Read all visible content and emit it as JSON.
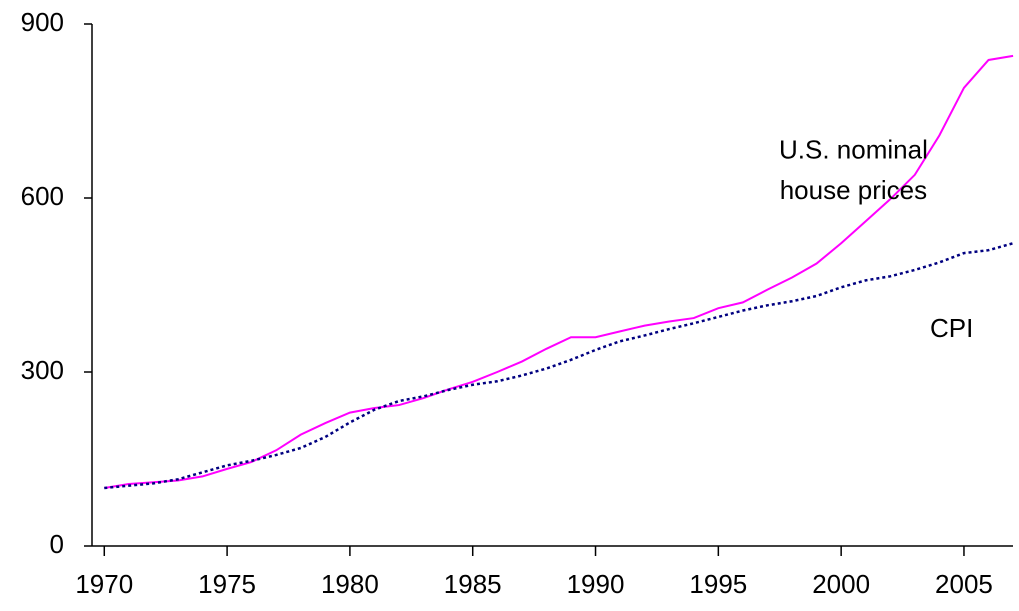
{
  "chart_data": {
    "type": "line",
    "x": [
      1970,
      1971,
      1972,
      1973,
      1974,
      1975,
      1976,
      1977,
      1978,
      1979,
      1980,
      1981,
      1982,
      1983,
      1984,
      1985,
      1986,
      1987,
      1988,
      1989,
      1990,
      1991,
      1992,
      1993,
      1994,
      1995,
      1996,
      1997,
      1998,
      1999,
      2000,
      2001,
      2002,
      2003,
      2004,
      2005,
      2006,
      2007
    ],
    "series": [
      {
        "color": "#ff00ff",
        "style": "solid",
        "values": [
          100,
          107,
          110,
          113,
          120,
          133,
          145,
          165,
          192,
          212,
          230,
          238,
          243,
          255,
          270,
          283,
          300,
          318,
          340,
          360,
          360,
          370,
          380,
          387,
          393,
          410,
          420,
          442,
          463,
          487,
          522,
          560,
          598,
          640,
          708,
          790,
          838,
          845
        ]
      },
      {
        "color": "#000080",
        "style": "dotted",
        "values": [
          100,
          104,
          108,
          115,
          127,
          139,
          147,
          157,
          169,
          188,
          213,
          235,
          250,
          258,
          269,
          278,
          284,
          294,
          306,
          321,
          338,
          353,
          363,
          374,
          384,
          395,
          406,
          415,
          422,
          431,
          446,
          458,
          465,
          476,
          489,
          505,
          510,
          522
        ]
      }
    ],
    "annotations": [
      {
        "text": "U.S. nominal",
        "x": 2000.5,
        "y": 680
      },
      {
        "text": "house prices",
        "x": 2000.5,
        "y": 610
      },
      {
        "text": "CPI",
        "x": 2004.5,
        "y": 372
      }
    ],
    "xlim": [
      1969.5,
      2007.2
    ],
    "xticks": [
      1970,
      1975,
      1980,
      1985,
      1990,
      1995,
      2000,
      2005
    ],
    "ylim": [
      0,
      900
    ],
    "yticks": [
      0,
      300,
      600,
      900
    ],
    "grid": false
  }
}
